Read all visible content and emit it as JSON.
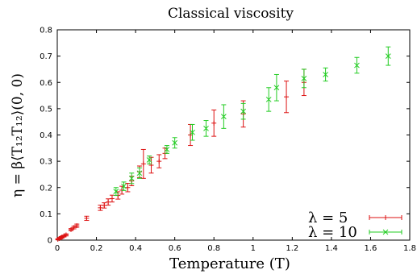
{
  "chart_data": {
    "type": "scatter",
    "title": "Classical viscosity",
    "xlabel": "Temperature (T)",
    "ylabel": "η = β⟨T₁₂T₁₂⟩(0, 0)",
    "xlim": [
      0,
      1.8
    ],
    "ylim": [
      0,
      0.8
    ],
    "xticks": [
      "0",
      "0.2",
      "0.4",
      "0.6",
      "0.8",
      "1",
      "1.2",
      "1.4",
      "1.6",
      "1.8"
    ],
    "yticks": [
      "0",
      "0.1",
      "0.2",
      "0.3",
      "0.4",
      "0.5",
      "0.6",
      "0.7",
      "0.8"
    ],
    "legend_position": "bottom-right",
    "error_bars": true,
    "series": [
      {
        "name": "λ = 5",
        "color": "#dd1111",
        "marker": "plus",
        "points": [
          [
            0.003,
            0.003,
            0.002
          ],
          [
            0.01,
            0.006,
            0.003
          ],
          [
            0.018,
            0.009,
            0.003
          ],
          [
            0.025,
            0.012,
            0.003
          ],
          [
            0.033,
            0.015,
            0.003
          ],
          [
            0.045,
            0.02,
            0.004
          ],
          [
            0.07,
            0.04,
            0.004
          ],
          [
            0.085,
            0.048,
            0.005
          ],
          [
            0.1,
            0.055,
            0.006
          ],
          [
            0.15,
            0.083,
            0.008
          ],
          [
            0.22,
            0.123,
            0.01
          ],
          [
            0.24,
            0.132,
            0.01
          ],
          [
            0.26,
            0.145,
            0.012
          ],
          [
            0.28,
            0.158,
            0.013
          ],
          [
            0.31,
            0.17,
            0.014
          ],
          [
            0.33,
            0.19,
            0.015
          ],
          [
            0.36,
            0.2,
            0.016
          ],
          [
            0.38,
            0.225,
            0.018
          ],
          [
            0.42,
            0.26,
            0.022
          ],
          [
            0.44,
            0.29,
            0.055
          ],
          [
            0.48,
            0.285,
            0.03
          ],
          [
            0.52,
            0.3,
            0.025
          ],
          [
            0.55,
            0.33,
            0.02
          ],
          [
            0.68,
            0.4,
            0.04
          ],
          [
            0.8,
            0.445,
            0.05
          ],
          [
            0.95,
            0.48,
            0.05
          ],
          [
            1.17,
            0.545,
            0.06
          ],
          [
            1.26,
            0.6,
            0.05
          ]
        ]
      },
      {
        "name": "λ = 10",
        "color": "#22cc22",
        "marker": "cross",
        "points": [
          [
            0.3,
            0.185,
            0.015
          ],
          [
            0.34,
            0.205,
            0.016
          ],
          [
            0.38,
            0.235,
            0.02
          ],
          [
            0.42,
            0.255,
            0.02
          ],
          [
            0.47,
            0.305,
            0.015
          ],
          [
            0.56,
            0.345,
            0.015
          ],
          [
            0.6,
            0.37,
            0.02
          ],
          [
            0.69,
            0.41,
            0.03
          ],
          [
            0.76,
            0.425,
            0.03
          ],
          [
            0.85,
            0.47,
            0.045
          ],
          [
            0.95,
            0.49,
            0.03
          ],
          [
            1.08,
            0.535,
            0.045
          ],
          [
            1.12,
            0.58,
            0.05
          ],
          [
            1.26,
            0.615,
            0.035
          ],
          [
            1.37,
            0.63,
            0.025
          ],
          [
            1.53,
            0.665,
            0.03
          ],
          [
            1.69,
            0.7,
            0.035
          ]
        ]
      }
    ]
  }
}
